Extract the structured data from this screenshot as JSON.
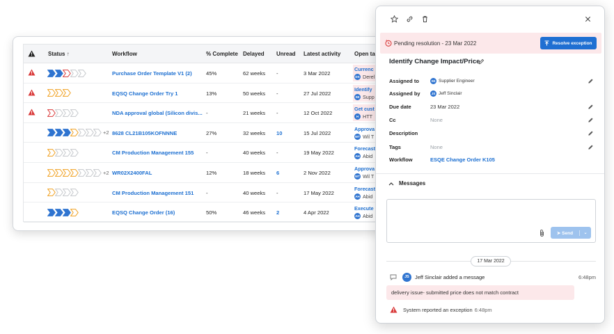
{
  "table": {
    "headers": {
      "status": "Status",
      "workflow": "Workflow",
      "pct": "% Complete",
      "delayed": "Delayed",
      "unread": "Unread",
      "latest": "Latest activity",
      "open": "Open tas"
    },
    "rows": [
      {
        "warn": true,
        "workflow": "Purchase Order Template V1 (2)",
        "pct": "45%",
        "delayed": "62 weeks",
        "unread": "-",
        "latest": "3 Mar 2022",
        "task": "Currenc",
        "task_sub": "Derel",
        "task_av": "DS"
      },
      {
        "warn": true,
        "workflow": "EQSQ Change Order Try 1",
        "pct": "13%",
        "delayed": "50 weeks",
        "unread": "-",
        "latest": "27 Jul 2022",
        "task": "Identify",
        "task_sub": "Supp",
        "task_av": "SE"
      },
      {
        "warn": true,
        "workflow": "NDA approval global (Silicon divis...",
        "pct": "-",
        "delayed": "21 weeks",
        "unread": "-",
        "latest": "12 Oct 2022",
        "task": "Get cust",
        "task_sub": "HTT",
        "task_av": "H"
      },
      {
        "warn": false,
        "workflow": "8628 CL21B105KOFNNNE",
        "pct": "27%",
        "delayed": "32 weeks",
        "unread": "10",
        "latest": "15 Jul 2022",
        "task": "Approva",
        "task_sub": "Wil T",
        "task_av": "WT",
        "plus": "+2"
      },
      {
        "warn": false,
        "workflow": "CM Production Management 155",
        "pct": "-",
        "delayed": "40 weeks",
        "unread": "-",
        "latest": "19 May 2022",
        "task": "Forecast",
        "task_sub": "Abid",
        "task_av": "AH"
      },
      {
        "warn": false,
        "workflow": "WR02X2400FAL",
        "pct": "12%",
        "delayed": "18 weeks",
        "unread": "6",
        "latest": "2 Nov 2022",
        "task": "Approva",
        "task_sub": "Wil T",
        "task_av": "WT",
        "plus": "+2"
      },
      {
        "warn": false,
        "workflow": "CM Production Management 151",
        "pct": "-",
        "delayed": "40 weeks",
        "unread": "-",
        "latest": "17 May 2022",
        "task": "Forecast",
        "task_sub": "Abid",
        "task_av": "AH"
      },
      {
        "warn": false,
        "workflow": "EQSQ Change Order (16)",
        "pct": "50%",
        "delayed": "46 weeks",
        "unread": "2",
        "latest": "4 Apr 2022",
        "task": "Execute",
        "task_sub": "Abid",
        "task_av": "AH"
      }
    ]
  },
  "panel": {
    "pending": "Pending resolution - 23 Mar 2022",
    "resolve_label": "Resolve exception",
    "title": "Identify Change Impact/Price",
    "fields": {
      "assigned_to_label": "Assigned to",
      "assigned_to": "Supplier Engineer",
      "assigned_by_label": "Assigned by",
      "assigned_by": "Jeff Sinclair",
      "due_label": "Due date",
      "due": "23 Mar 2022",
      "cc_label": "Cc",
      "cc": "None",
      "desc_label": "Description",
      "tags_label": "Tags",
      "tags": "None",
      "workflow_label": "Workflow",
      "workflow": "ESQE Change Order K105"
    },
    "messages_label": "Messages",
    "send_label": "Send",
    "date_pill": "17 Mar 2022",
    "log_user_initials": "JS",
    "log_text": "Jeff Sinclair added a message",
    "log_time": "6:48pm",
    "message": "delivery issue- submitted price does not match contract",
    "system_text": "System reported an exception",
    "system_time": "6:48pm"
  },
  "colors": {
    "accent": "#1f6fd2",
    "warn": "#d93a3a",
    "pending_bg": "#fce8ea",
    "chev_blue": "#2f74d0",
    "chev_red": "#d93a3a",
    "chev_orange": "#f0a020",
    "chev_grey": "#c5c8cc"
  }
}
